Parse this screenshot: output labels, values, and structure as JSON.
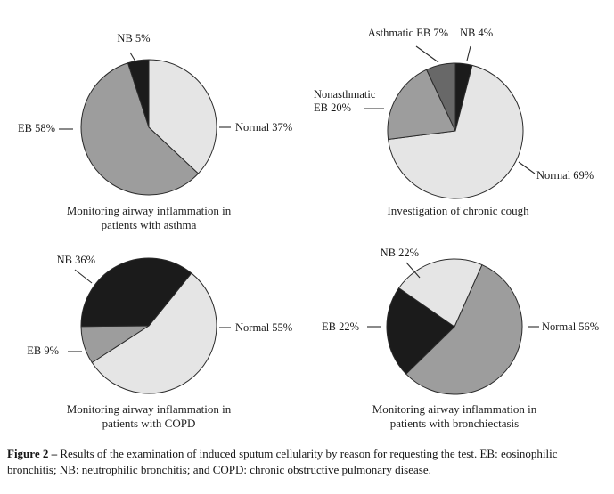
{
  "figure": {
    "caption_bold": "Figure 2 –",
    "caption_line1": "Results of the examination of induced sputum cellularity by reason for requesting the test. EB: eosinophilic",
    "caption_line2": "bronchitis; NB: neutrophilic bronchitis; and COPD: chronic obstructive pulmonary disease."
  },
  "colors": {
    "background": "#ffffff",
    "text": "#1a1a1a",
    "outline": "#2b2b2b",
    "light_gray": "#e5e5e5",
    "medium_gray": "#9d9d9d",
    "dark_gray": "#686868",
    "black": "#1b1b1b"
  },
  "chart_data": [
    {
      "type": "pie",
      "title": "Monitoring airway inflammation in patients with asthma",
      "title_lines": [
        "Monitoring airway inflammation in",
        "patients with asthma"
      ],
      "start_angle_deg": 0,
      "legend_position": "outside-leader-labels",
      "slices": [
        {
          "label": "Normal",
          "value_pct": 37,
          "display": "Normal 37%",
          "color": "#e5e5e5"
        },
        {
          "label": "EB",
          "value_pct": 58,
          "display": "EB 58%",
          "color": "#9d9d9d"
        },
        {
          "label": "NB",
          "value_pct": 5,
          "display": "NB 5%",
          "color": "#1b1b1b"
        }
      ]
    },
    {
      "type": "pie",
      "title": "Investigation of chronic cough",
      "title_lines": [
        "Investigation of chronic cough"
      ],
      "start_angle_deg": 0,
      "legend_position": "outside-leader-labels",
      "slices": [
        {
          "label": "NB",
          "value_pct": 4,
          "display": "NB 4%",
          "color": "#1b1b1b"
        },
        {
          "label": "Normal",
          "value_pct": 69,
          "display": "Normal 69%",
          "color": "#e5e5e5"
        },
        {
          "label": "Nonasthmatic EB",
          "value_pct": 20,
          "display": "Nonasthmatic EB 20%",
          "color": "#9d9d9d"
        },
        {
          "label": "Asthmatic EB",
          "value_pct": 7,
          "display": "Asthmatic EB 7%",
          "color": "#686868"
        }
      ]
    },
    {
      "type": "pie",
      "title": "Monitoring airway inflammation in patients with COPD",
      "title_lines": [
        "Monitoring airway inflammation in",
        "patients with COPD"
      ],
      "start_angle_deg": 39,
      "legend_position": "outside-leader-labels",
      "slices": [
        {
          "label": "Normal",
          "value_pct": 55,
          "display": "Normal 55%",
          "color": "#e5e5e5"
        },
        {
          "label": "EB",
          "value_pct": 9,
          "display": "EB 9%",
          "color": "#9d9d9d"
        },
        {
          "label": "NB",
          "value_pct": 36,
          "display": "NB 36%",
          "color": "#1b1b1b"
        }
      ]
    },
    {
      "type": "pie",
      "title": "Monitoring airway inflammation in patients with bronchiectasis",
      "title_lines": [
        "Monitoring airway inflammation in",
        "patients with bronchiectasis"
      ],
      "start_angle_deg": 24,
      "legend_position": "outside-leader-labels",
      "slices": [
        {
          "label": "Normal",
          "value_pct": 56,
          "display": "Normal 56%",
          "color": "#9d9d9d"
        },
        {
          "label": "EB",
          "value_pct": 22,
          "display": "EB 22%",
          "color": "#1b1b1b"
        },
        {
          "label": "NB",
          "value_pct": 22,
          "display": "NB 22%",
          "color": "#e5e5e5"
        }
      ]
    }
  ]
}
